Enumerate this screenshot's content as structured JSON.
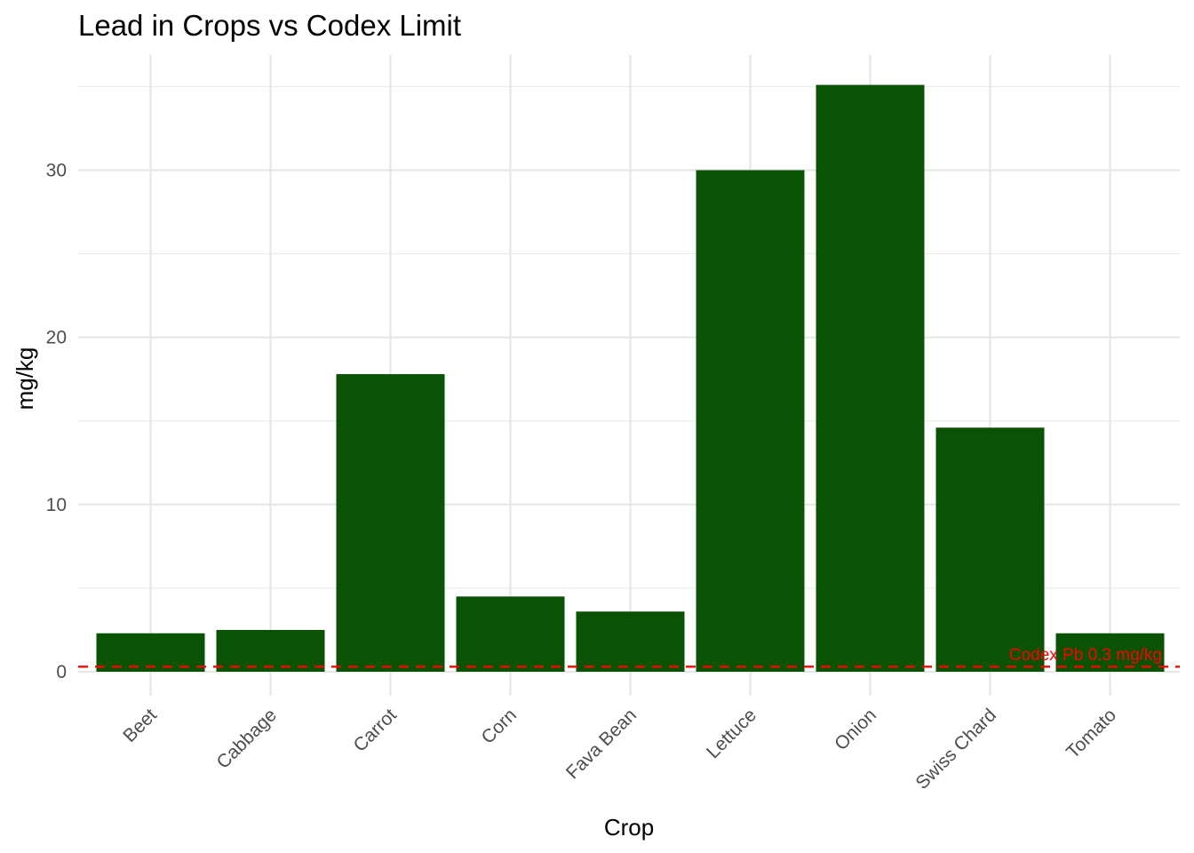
{
  "chart_data": {
    "type": "bar",
    "title": "Lead in Crops vs Codex Limit",
    "xlabel": "Crop",
    "ylabel": "mg/kg",
    "categories": [
      "Beet",
      "Cabbage",
      "Carrot",
      "Corn",
      "Fava Bean",
      "Lettuce",
      "Onion",
      "Swiss Chard",
      "Tomato"
    ],
    "values": [
      2.3,
      2.5,
      17.8,
      4.5,
      3.6,
      30.0,
      35.1,
      14.6,
      2.3
    ],
    "ylim": [
      0,
      36.9
    ],
    "yticks": [
      0,
      10,
      20,
      30
    ],
    "grid": true,
    "bar_color": "#0b5304",
    "reference_line": {
      "value": 0.3,
      "label": "Codex Pb 0.3 mg/kg",
      "color": "#ff0000",
      "style": "dashed"
    }
  }
}
